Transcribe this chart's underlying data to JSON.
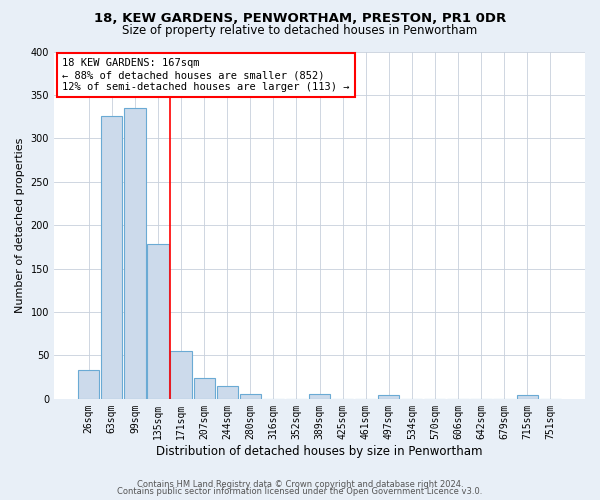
{
  "title1": "18, KEW GARDENS, PENWORTHAM, PRESTON, PR1 0DR",
  "title2": "Size of property relative to detached houses in Penwortham",
  "xlabel": "Distribution of detached houses by size in Penwortham",
  "ylabel": "Number of detached properties",
  "footer1": "Contains HM Land Registry data © Crown copyright and database right 2024.",
  "footer2": "Contains public sector information licensed under the Open Government Licence v3.0.",
  "categories": [
    "26sqm",
    "63sqm",
    "99sqm",
    "135sqm",
    "171sqm",
    "207sqm",
    "244sqm",
    "280sqm",
    "316sqm",
    "352sqm",
    "389sqm",
    "425sqm",
    "461sqm",
    "497sqm",
    "534sqm",
    "570sqm",
    "606sqm",
    "642sqm",
    "679sqm",
    "715sqm",
    "751sqm"
  ],
  "values": [
    33,
    326,
    335,
    178,
    55,
    24,
    15,
    5,
    0,
    0,
    5,
    0,
    0,
    4,
    0,
    0,
    0,
    0,
    0,
    4,
    0
  ],
  "bar_color": "#ccdaeb",
  "bar_edge_color": "#6aaad4",
  "annotation_line1": "18 KEW GARDENS: 167sqm",
  "annotation_line2": "← 88% of detached houses are smaller (852)",
  "annotation_line3": "12% of semi-detached houses are larger (113) →",
  "annotation_box_color": "white",
  "annotation_box_edge_color": "red",
  "vline_color": "red",
  "ylim": [
    0,
    400
  ],
  "yticks": [
    0,
    50,
    100,
    150,
    200,
    250,
    300,
    350,
    400
  ],
  "bg_color": "#e8eff7",
  "plot_bg_color": "white",
  "grid_color": "#c8d0dc",
  "title1_fontsize": 9.5,
  "title2_fontsize": 8.5,
  "xlabel_fontsize": 8.5,
  "ylabel_fontsize": 8,
  "tick_fontsize": 7,
  "annot_fontsize": 7.5,
  "footer_fontsize": 6
}
